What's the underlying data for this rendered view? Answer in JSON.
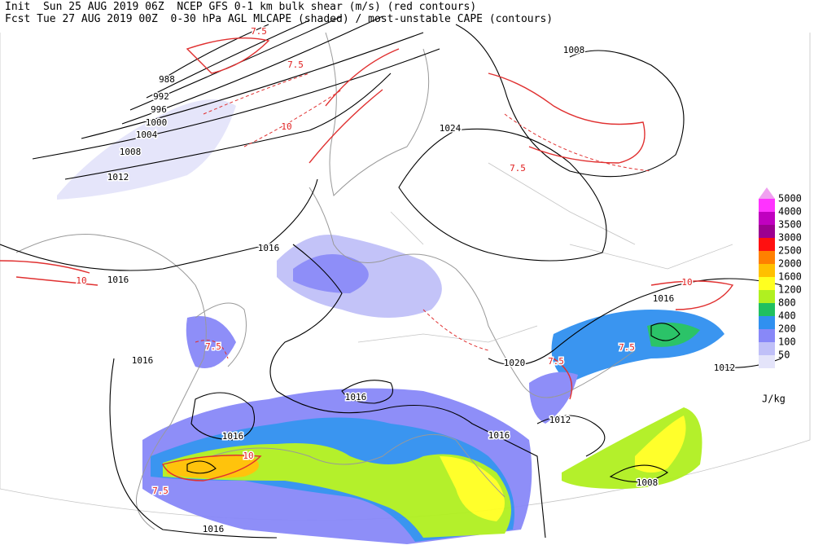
{
  "header": {
    "line1": "Init  Sun 25 AUG 2019 06Z  NCEP GFS 0-1 km bulk shear (m/s) (red contours)",
    "line2": "Fcst Tue 27 AUG 2019 00Z  0-30 hPa AGL MLCAPE (shaded) / most-unstable CAPE (contours)"
  },
  "legend": {
    "levels": [
      5000,
      4000,
      3500,
      3000,
      2500,
      2000,
      1600,
      1200,
      800,
      400,
      200,
      100,
      50
    ],
    "colors": [
      "#ff33ff",
      "#c000c0",
      "#9c0090",
      "#ff1010",
      "#ff8000",
      "#ffc000",
      "#ffff20",
      "#b0f020",
      "#20c060",
      "#3090f0",
      "#8888f8",
      "#c0c0f8",
      "#e4e4fa"
    ],
    "top_color": "#f0a0f0",
    "unit": "J/kg"
  },
  "isobar_labels": [
    "988",
    "992",
    "996",
    "1000",
    "1004",
    "1008",
    "1012",
    "1016",
    "1016",
    "1016",
    "1016",
    "1016",
    "1016",
    "1020",
    "1024",
    "1008",
    "1016",
    "1012",
    "1012",
    "1008",
    "1016"
  ],
  "shear_labels": [
    "7.5",
    "7.5",
    "7.5",
    "7.5",
    "7.5",
    "10",
    "10",
    "10",
    "10",
    "7.5",
    "7.5"
  ]
}
